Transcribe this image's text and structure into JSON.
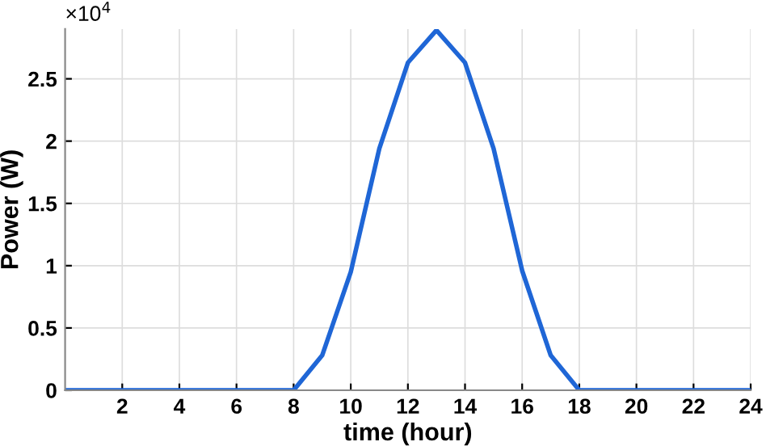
{
  "chart_data": {
    "type": "line",
    "xlabel": "time (hour)",
    "ylabel": "Power (W)",
    "x": [
      0,
      1,
      2,
      3,
      4,
      5,
      6,
      7,
      8,
      9,
      10,
      11,
      12,
      13,
      14,
      15,
      16,
      17,
      18,
      19,
      20,
      21,
      22,
      23,
      24
    ],
    "series": [
      {
        "color": "#1f66d6",
        "values": [
          0,
          0,
          0,
          0,
          0,
          0,
          0,
          0,
          0,
          0.28,
          0.95,
          1.94,
          2.63,
          2.89,
          2.63,
          1.94,
          0.96,
          0.28,
          0,
          0,
          0,
          0,
          0,
          0,
          0
        ]
      }
    ],
    "xlim": [
      0,
      24
    ],
    "xticks": [
      2,
      4,
      6,
      8,
      10,
      12,
      14,
      16,
      18,
      20,
      22,
      24
    ],
    "ylim": [
      0,
      2.9
    ],
    "yticks": [
      0,
      0.5,
      1,
      1.5,
      2,
      2.5
    ],
    "annotations": [
      "×10$^{4}$"
    ],
    "grid": true,
    "legend": false,
    "line_style": "solid",
    "marker": "none"
  }
}
